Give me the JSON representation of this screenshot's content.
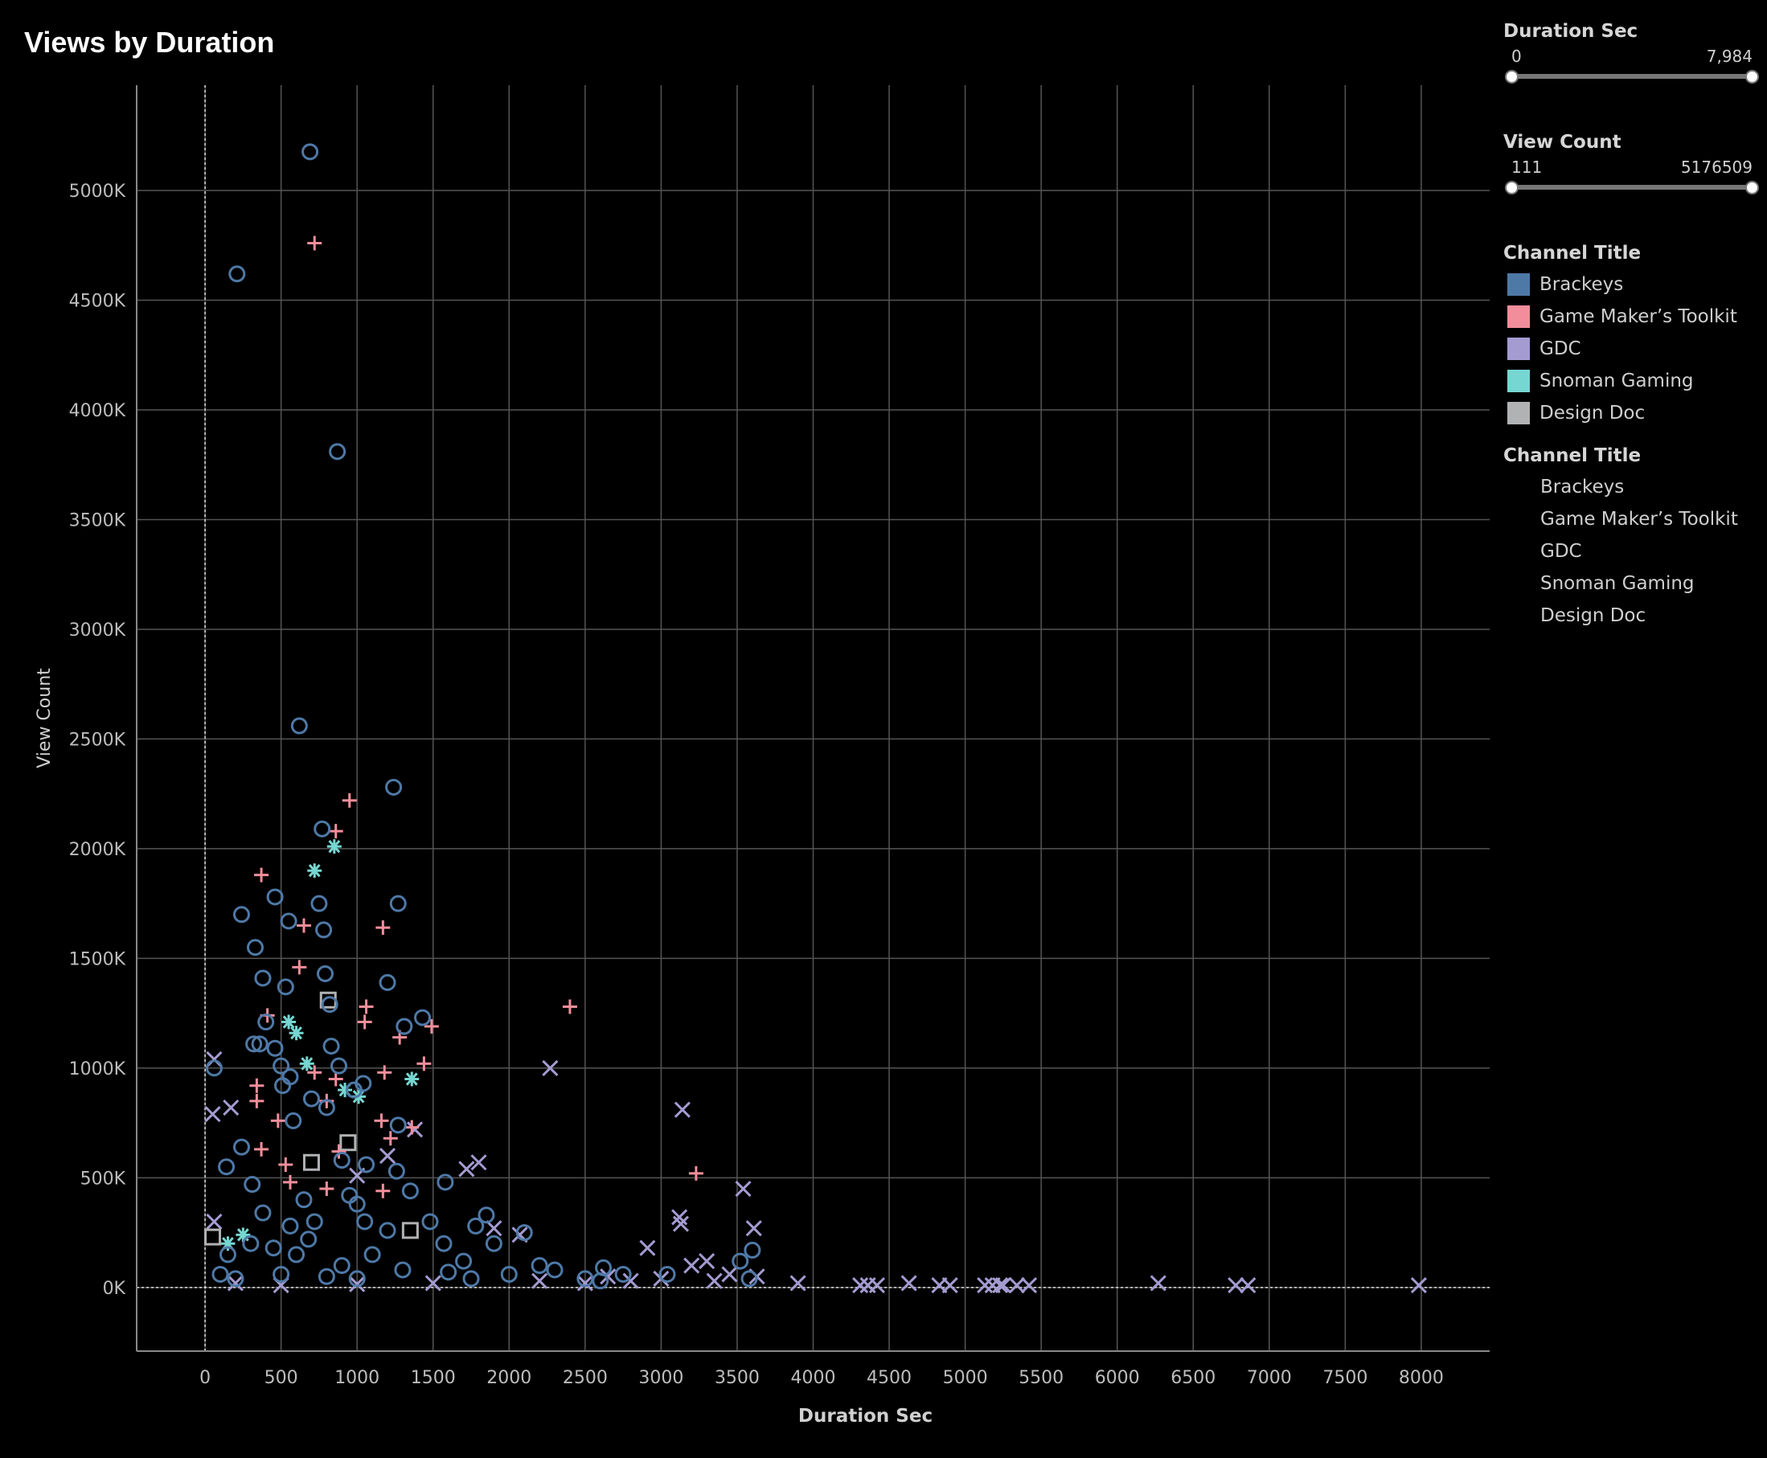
{
  "title": "Views by Duration",
  "filters": [
    {
      "title": "Duration Sec",
      "min": "0",
      "max": "7,984"
    },
    {
      "title": "View Count",
      "min": "111",
      "max": "5176509"
    }
  ],
  "legend_color": {
    "title": "Channel Title",
    "items": [
      {
        "label": "Brackeys",
        "color": "#4e79a7"
      },
      {
        "label": "Game Maker’s Toolkit",
        "color": "#f28e9b"
      },
      {
        "label": "GDC",
        "color": "#a49bd1"
      },
      {
        "label": "Snoman Gaming",
        "color": "#76d6d1"
      },
      {
        "label": "Design Doc",
        "color": "#b0b2b4"
      }
    ]
  },
  "legend_shape": {
    "title": "Channel Title",
    "items": [
      "Brackeys",
      "Game Maker’s Toolkit",
      "GDC",
      "Snoman Gaming",
      "Design Doc"
    ]
  },
  "chart_data": {
    "type": "scatter",
    "title": "Views by Duration",
    "xlabel": "Duration Sec",
    "ylabel": "View Count",
    "xlim": [
      -450,
      8450
    ],
    "ylim": [
      -290000,
      5480000
    ],
    "x_ticks": [
      0,
      500,
      1000,
      1500,
      2000,
      2500,
      3000,
      3500,
      4000,
      4500,
      5000,
      5500,
      6000,
      6500,
      7000,
      7500,
      8000
    ],
    "y_ticks": [
      0,
      500000,
      1000000,
      1500000,
      2000000,
      2500000,
      3000000,
      3500000,
      4000000,
      4500000,
      5000000
    ],
    "y_tick_labels": [
      "0K",
      "500K",
      "1000K",
      "1500K",
      "2000K",
      "2500K",
      "3000K",
      "3500K",
      "4000K",
      "4500K",
      "5000K"
    ],
    "grid": true,
    "series": [
      {
        "name": "Brackeys",
        "marker": "circle",
        "color": "#4e79a7",
        "points": [
          [
            690,
            5176509
          ],
          [
            210,
            4620000
          ],
          [
            870,
            3810000
          ],
          [
            620,
            2560000
          ],
          [
            1240,
            2280000
          ],
          [
            770,
            2090000
          ],
          [
            240,
            1700000
          ],
          [
            460,
            1780000
          ],
          [
            750,
            1750000
          ],
          [
            1270,
            1750000
          ],
          [
            550,
            1670000
          ],
          [
            780,
            1630000
          ],
          [
            330,
            1550000
          ],
          [
            380,
            1410000
          ],
          [
            790,
            1430000
          ],
          [
            530,
            1370000
          ],
          [
            1200,
            1390000
          ],
          [
            820,
            1290000
          ],
          [
            1430,
            1230000
          ],
          [
            400,
            1210000
          ],
          [
            1310,
            1190000
          ],
          [
            320,
            1110000
          ],
          [
            360,
            1110000
          ],
          [
            460,
            1090000
          ],
          [
            830,
            1100000
          ],
          [
            60,
            1000000
          ],
          [
            500,
            1010000
          ],
          [
            880,
            1010000
          ],
          [
            560,
            960000
          ],
          [
            510,
            920000
          ],
          [
            1040,
            930000
          ],
          [
            980,
            900000
          ],
          [
            700,
            860000
          ],
          [
            800,
            820000
          ],
          [
            580,
            760000
          ],
          [
            1270,
            740000
          ],
          [
            240,
            640000
          ],
          [
            140,
            550000
          ],
          [
            900,
            580000
          ],
          [
            1060,
            560000
          ],
          [
            1260,
            530000
          ],
          [
            1580,
            480000
          ],
          [
            310,
            470000
          ],
          [
            1350,
            440000
          ],
          [
            650,
            400000
          ],
          [
            1000,
            380000
          ],
          [
            1780,
            280000
          ],
          [
            1480,
            300000
          ],
          [
            1850,
            330000
          ],
          [
            720,
            300000
          ],
          [
            2100,
            250000
          ],
          [
            1570,
            200000
          ],
          [
            1200,
            260000
          ],
          [
            380,
            340000
          ],
          [
            1900,
            200000
          ],
          [
            2300,
            80000
          ],
          [
            2500,
            40000
          ],
          [
            2620,
            90000
          ],
          [
            3040,
            60000
          ],
          [
            3520,
            120000
          ],
          [
            3600,
            170000
          ],
          [
            3580,
            40000
          ],
          [
            2600,
            30000
          ],
          [
            2750,
            60000
          ],
          [
            1600,
            70000
          ],
          [
            1700,
            120000
          ],
          [
            1100,
            150000
          ],
          [
            900,
            100000
          ],
          [
            600,
            150000
          ],
          [
            450,
            180000
          ],
          [
            300,
            200000
          ],
          [
            150,
            150000
          ],
          [
            100,
            60000
          ],
          [
            200,
            40000
          ],
          [
            500,
            60000
          ],
          [
            800,
            50000
          ],
          [
            1000,
            40000
          ],
          [
            1300,
            80000
          ],
          [
            2000,
            60000
          ],
          [
            2200,
            100000
          ],
          [
            1750,
            40000
          ],
          [
            1050,
            300000
          ],
          [
            950,
            420000
          ],
          [
            680,
            220000
          ],
          [
            560,
            280000
          ]
        ]
      },
      {
        "name": "Game Maker’s Toolkit",
        "marker": "plus",
        "color": "#f28e9b",
        "points": [
          [
            720,
            4760000
          ],
          [
            950,
            2220000
          ],
          [
            860,
            2080000
          ],
          [
            370,
            1880000
          ],
          [
            1170,
            1640000
          ],
          [
            650,
            1650000
          ],
          [
            620,
            1460000
          ],
          [
            2400,
            1280000
          ],
          [
            1060,
            1280000
          ],
          [
            1050,
            1210000
          ],
          [
            1490,
            1190000
          ],
          [
            410,
            1240000
          ],
          [
            1280,
            1140000
          ],
          [
            1440,
            1020000
          ],
          [
            720,
            980000
          ],
          [
            1180,
            980000
          ],
          [
            340,
            920000
          ],
          [
            860,
            950000
          ],
          [
            1360,
            730000
          ],
          [
            1160,
            760000
          ],
          [
            340,
            850000
          ],
          [
            800,
            850000
          ],
          [
            480,
            760000
          ],
          [
            1220,
            680000
          ],
          [
            3230,
            520000
          ],
          [
            370,
            630000
          ],
          [
            530,
            560000
          ],
          [
            800,
            450000
          ],
          [
            1170,
            440000
          ],
          [
            560,
            480000
          ],
          [
            880,
            620000
          ]
        ]
      },
      {
        "name": "GDC",
        "marker": "x",
        "color": "#a49bd1",
        "points": [
          [
            60,
            1040000
          ],
          [
            50,
            790000
          ],
          [
            170,
            820000
          ],
          [
            2270,
            1000000
          ],
          [
            3140,
            810000
          ],
          [
            1800,
            570000
          ],
          [
            1720,
            540000
          ],
          [
            3540,
            450000
          ],
          [
            1000,
            510000
          ],
          [
            1200,
            600000
          ],
          [
            1380,
            720000
          ],
          [
            1900,
            270000
          ],
          [
            3120,
            320000
          ],
          [
            3130,
            290000
          ],
          [
            3610,
            270000
          ],
          [
            2070,
            240000
          ],
          [
            2910,
            180000
          ],
          [
            60,
            300000
          ],
          [
            3300,
            120000
          ],
          [
            3200,
            100000
          ],
          [
            3450,
            60000
          ],
          [
            3630,
            50000
          ],
          [
            3900,
            20000
          ],
          [
            4310,
            10000
          ],
          [
            4360,
            10000
          ],
          [
            4420,
            10000
          ],
          [
            4630,
            20000
          ],
          [
            4830,
            10000
          ],
          [
            4900,
            10000
          ],
          [
            5130,
            10000
          ],
          [
            5180,
            10000
          ],
          [
            5230,
            10000
          ],
          [
            5250,
            10000
          ],
          [
            5340,
            10000
          ],
          [
            5420,
            10000
          ],
          [
            6270,
            20000
          ],
          [
            6780,
            10000
          ],
          [
            6860,
            10000
          ],
          [
            7984,
            10000
          ],
          [
            2500,
            20000
          ],
          [
            2800,
            30000
          ],
          [
            3000,
            40000
          ],
          [
            2200,
            30000
          ],
          [
            1500,
            20000
          ],
          [
            1000,
            15000
          ],
          [
            500,
            10000
          ],
          [
            200,
            20000
          ],
          [
            2650,
            50000
          ],
          [
            3350,
            30000
          ]
        ]
      },
      {
        "name": "Snoman Gaming",
        "marker": "asterisk",
        "color": "#76d6d1",
        "points": [
          [
            850,
            2010000
          ],
          [
            720,
            1900000
          ],
          [
            550,
            1210000
          ],
          [
            600,
            1160000
          ],
          [
            670,
            1020000
          ],
          [
            1360,
            950000
          ],
          [
            920,
            900000
          ],
          [
            1010,
            870000
          ],
          [
            250,
            240000
          ],
          [
            150,
            200000
          ]
        ]
      },
      {
        "name": "Design Doc",
        "marker": "square",
        "color": "#b0b2b4",
        "points": [
          [
            810,
            1310000
          ],
          [
            940,
            660000
          ],
          [
            1350,
            260000
          ],
          [
            700,
            570000
          ],
          [
            50,
            230000
          ]
        ]
      }
    ]
  }
}
